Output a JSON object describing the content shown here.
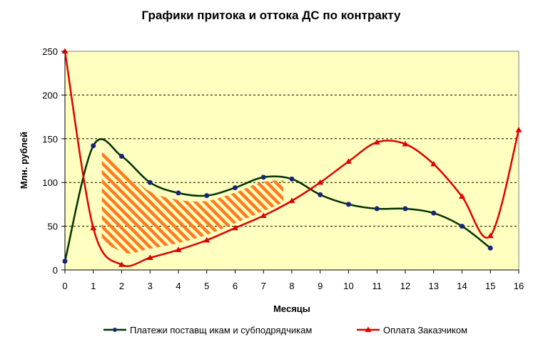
{
  "chart_data": {
    "type": "line",
    "title": "Графики притока и оттока ДС по контракту",
    "xlabel": "Месяцы",
    "ylabel": "Млн. рублей",
    "xlim": [
      0,
      16
    ],
    "ylim": [
      0,
      250
    ],
    "x_ticks": [
      "0",
      "1",
      "2",
      "3",
      "4",
      "5",
      "6",
      "7",
      "8",
      "9",
      "10",
      "11",
      "12",
      "13",
      "14",
      "15",
      "16"
    ],
    "y_ticks": [
      "0",
      "50",
      "100",
      "150",
      "200",
      "250"
    ],
    "grid": "horizontal dashed",
    "legend_position": "bottom",
    "plot_background": "#ffffc0",
    "annotation": "hatched area between curves (months 1–8)",
    "series": [
      {
        "name": "Платежи поставщ икам и субподрядчикам",
        "color": "#003300",
        "marker": "circle",
        "x": [
          0,
          1,
          2,
          3,
          4,
          5,
          6,
          7,
          8,
          9,
          10,
          11,
          12,
          13,
          14,
          15
        ],
        "y": [
          10,
          142,
          130,
          100,
          88,
          85,
          94,
          106,
          104,
          86,
          75,
          70,
          70,
          65,
          50,
          25
        ]
      },
      {
        "name": "Оплата Заказчиком",
        "color": "#e00000",
        "marker": "triangle",
        "x": [
          0,
          1,
          2,
          3,
          4,
          5,
          6,
          7,
          8,
          9,
          10,
          11,
          12,
          13,
          14,
          15,
          16
        ],
        "y": [
          250,
          48,
          6,
          14,
          23,
          34,
          48,
          62,
          79,
          100,
          124,
          146,
          144,
          121,
          84,
          39,
          160
        ]
      }
    ]
  }
}
